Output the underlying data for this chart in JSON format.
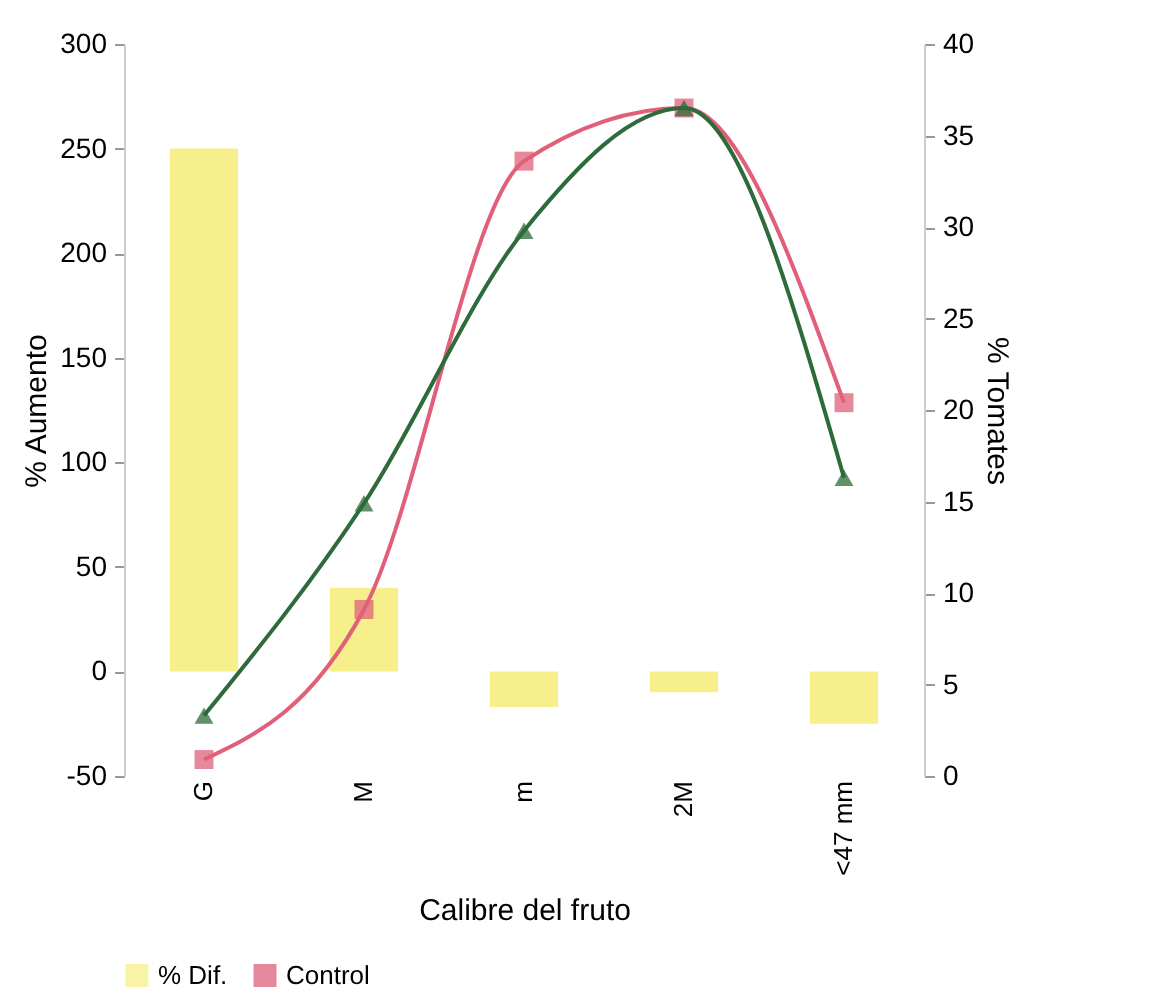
{
  "chart_data": {
    "type": "bar",
    "xlabel": "Calibre del fruto",
    "ylabel": "% Aumento",
    "y2label": "% Tomates",
    "categories": [
      "G",
      "M",
      "m",
      "2M",
      "<47 mm"
    ],
    "series": [
      {
        "name": "% Dif.",
        "color": "#f7ef8c",
        "values": [
          250,
          40,
          -17,
          -10,
          -25
        ]
      },
      {
        "type": "line",
        "axis": "y2",
        "marker": "triangle",
        "color": "#2e6b3a",
        "values": [
          3.3,
          14.9,
          29.8,
          36.5,
          16.3
        ]
      },
      {
        "name": "Control",
        "type": "line",
        "axis": "y2",
        "marker": "square",
        "color": "#e0607a",
        "values": [
          0.9,
          9.1,
          33.6,
          36.5,
          20.4
        ]
      }
    ],
    "ylim": [
      -50,
      300
    ],
    "yticks": [
      -50,
      0,
      50,
      100,
      150,
      200,
      250,
      300
    ],
    "y2lim": [
      0,
      40
    ],
    "y2ticks": [
      0,
      5,
      10,
      15,
      20,
      25,
      30,
      35,
      40
    ],
    "grid": false,
    "legend": "bottom"
  }
}
